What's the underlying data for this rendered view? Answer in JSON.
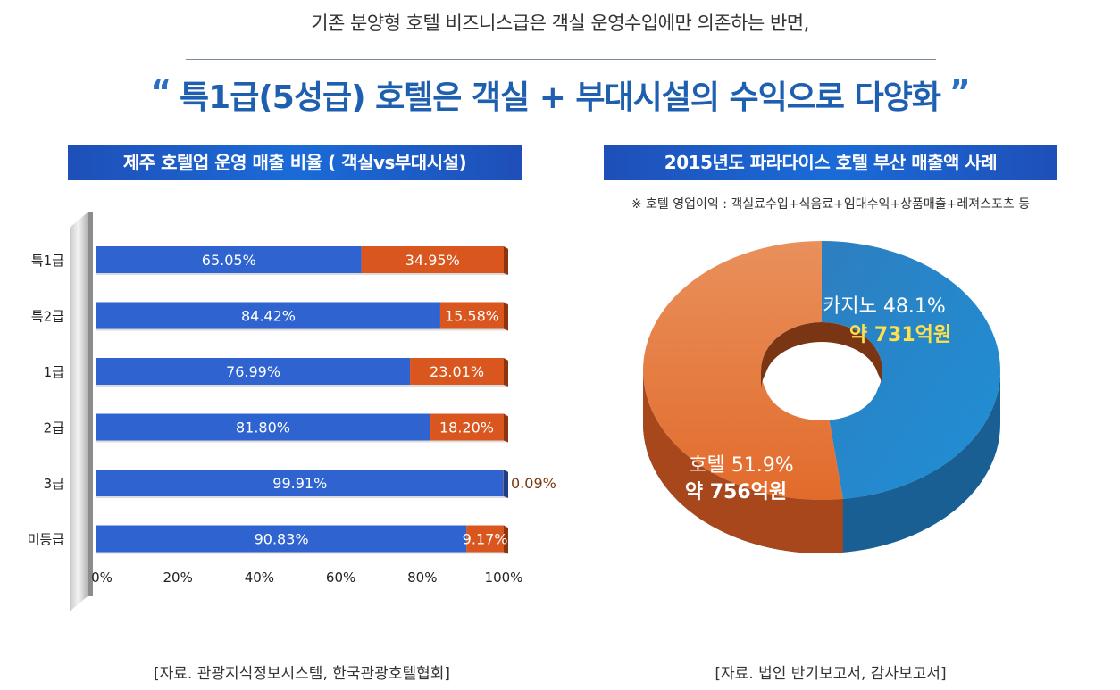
{
  "header": {
    "subtitle": "기존 분양형 호텔 비즈니스급은 객실 운영수입에만 의존하는 반면,",
    "open_quote": "“",
    "headline": "특1급(5성급) 호텔은 객실 + 부대시설의 수익으로 다양화",
    "close_quote": "”"
  },
  "left_panel": {
    "title": "제주 호텔업 운영 매출 비율 ( 객실vs부대시설)",
    "source": "[자료. 관광지식정보시스템, 한국관광호텔협회]"
  },
  "right_panel": {
    "title": "2015년도 파라다이스 호텔 부산 매출액 사례",
    "note": "※ 호텔 영업이익 : 객실료수입+식음료+임대수익+상품매출+레져스포츠 등",
    "source": "[자료. 법인 반기보고서, 감사보고서]"
  },
  "colors": {
    "blue": "#2f64d0",
    "orange": "#d9561f",
    "pie_blue": "#1f8fd6",
    "pie_orange": "#e26b2b",
    "label_yellow": "#ffe14a"
  },
  "chart_data": [
    {
      "type": "bar",
      "orientation": "horizontal",
      "stacked": true,
      "categories": [
        "특1급",
        "특2급",
        "1급",
        "2급",
        "3급",
        "미등급"
      ],
      "series": [
        {
          "values": [
            65.05,
            84.42,
            76.99,
            81.8,
            99.91,
            90.83
          ],
          "labels": [
            "65.05%",
            "84.42%",
            "76.99%",
            "81.80%",
            "99.91%",
            "90.83%"
          ]
        },
        {
          "values": [
            34.95,
            15.58,
            23.01,
            18.2,
            0.09,
            9.17
          ],
          "labels": [
            "34.95%",
            "15.58%",
            "23.01%",
            "18.20%",
            "0.09%",
            "9.17%"
          ]
        }
      ],
      "xlim": [
        0,
        100
      ],
      "xticks": [
        "0%",
        "20%",
        "40%",
        "60%",
        "80%",
        "100%"
      ]
    },
    {
      "type": "pie",
      "donut": true,
      "slices": [
        {
          "name": "카지노",
          "value": 48.1,
          "label_pct": "카지노 48.1%",
          "label_amount": "약 731억원"
        },
        {
          "name": "호텔",
          "value": 51.9,
          "label_pct": "호텔 51.9%",
          "label_amount": "약 756억원"
        }
      ]
    }
  ]
}
